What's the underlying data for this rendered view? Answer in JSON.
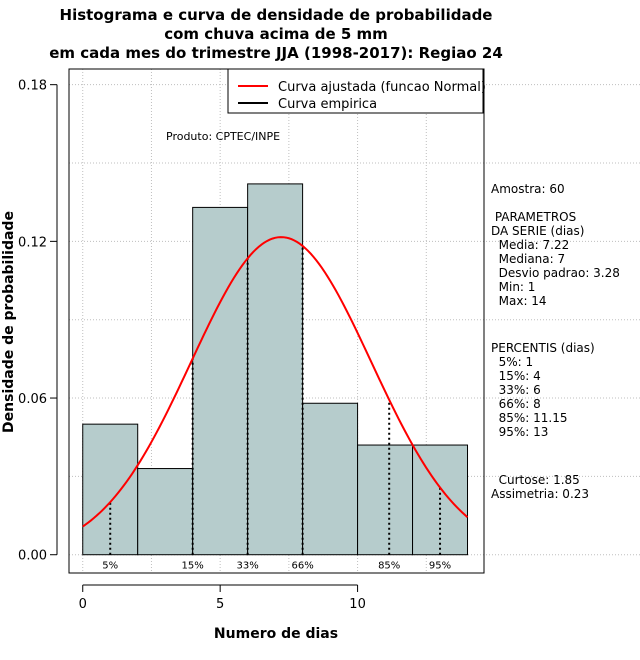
{
  "chart_data": {
    "type": "bar",
    "title_lines": [
      "Histograma e curva de densidade de probabilidade",
      "com chuva acima de 5 mm",
      "em cada mes do trimestre JJA (1998-2017): Regiao 24"
    ],
    "xlabel": "Numero de dias",
    "ylabel": "Densidade de probabilidade",
    "xlim": [
      -0.5,
      14.6
    ],
    "ylim": [
      -0.007,
      0.186
    ],
    "xticks": [
      0,
      5,
      10
    ],
    "yticks": [
      0.0,
      0.06,
      0.12,
      0.18
    ],
    "ytick_labels": [
      "0.00",
      "0.06",
      "0.12",
      "0.18"
    ],
    "bins": [
      {
        "start": 0,
        "end": 2,
        "density": 0.05
      },
      {
        "start": 2,
        "end": 4,
        "density": 0.033
      },
      {
        "start": 4,
        "end": 6,
        "density": 0.133
      },
      {
        "start": 6,
        "end": 8,
        "density": 0.142
      },
      {
        "start": 8,
        "end": 10,
        "density": 0.058
      },
      {
        "start": 10,
        "end": 12,
        "density": 0.042
      },
      {
        "start": 12,
        "end": 14,
        "density": 0.042
      }
    ],
    "normal_fit": {
      "mean": 7.22,
      "sd": 3.28,
      "x_from": 0,
      "x_to": 14
    },
    "percentile_marks": [
      {
        "label": "5%",
        "x": 1
      },
      {
        "label": "15%",
        "x": 4
      },
      {
        "label": "33%",
        "x": 6
      },
      {
        "label": "66%",
        "x": 8
      },
      {
        "label": "85%",
        "x": 11.15
      },
      {
        "label": "95%",
        "x": 13
      }
    ],
    "legend": [
      {
        "label": "Curva ajustada (funcao Normal)",
        "color": "#ff0000"
      },
      {
        "label": "Curva empirica",
        "color": "#000000"
      }
    ],
    "annotation": "Produto: CPTEC/INPE",
    "side_text": [
      "Amostra: 60",
      " PARAMETROS",
      "DA SERIE (dias)",
      "  Media: 7.22",
      "  Mediana: 7",
      "  Desvio padrao: 3.28",
      "  Min: 1",
      "  Max: 14",
      "PERCENTIS (dias)",
      "  5%: 1",
      "  15%: 4",
      "  33%: 6",
      "  66%: 8",
      "  85%: 11.15",
      "  95%: 13",
      "  Curtose: 1.85",
      "Assimetria: 0.23"
    ],
    "colors": {
      "bar_fill": "#b6cccc",
      "bar_stroke": "#000000",
      "curve": "#ff0000",
      "grid": "#bfbfbf"
    }
  }
}
